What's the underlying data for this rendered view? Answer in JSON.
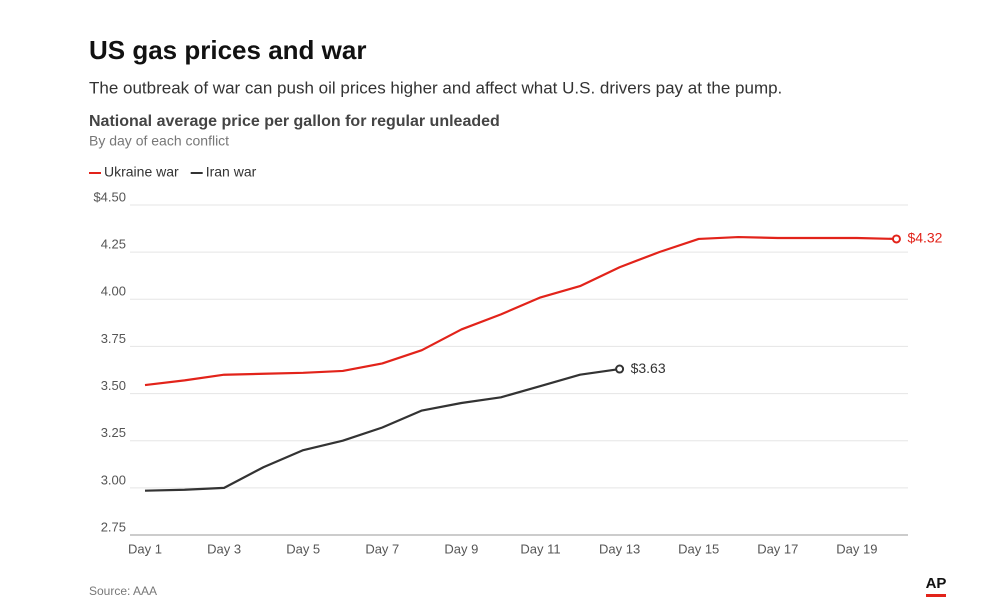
{
  "chart_data": {
    "type": "line",
    "title": "US gas prices and war",
    "subtitle": "The outbreak of war can push oil prices higher and affect what U.S. drivers pay at the pump.",
    "chart_title": "National average price per gallon for regular unleaded",
    "chart_subtitle": "By day of each conflict",
    "source": "Source: AAA",
    "logo": "AP",
    "categories": [
      "Day 1",
      null,
      "Day 3",
      null,
      "Day 5",
      null,
      "Day 7",
      null,
      "Day 9",
      null,
      "Day 11",
      null,
      "Day 13",
      null,
      "Day 15",
      null,
      "Day 17",
      null,
      "Day 19",
      null
    ],
    "series": [
      {
        "name": "Ukraine war",
        "color": "#e2231a",
        "values": [
          3.545,
          3.57,
          3.6,
          3.605,
          3.61,
          3.62,
          3.66,
          3.73,
          3.84,
          3.92,
          4.01,
          4.07,
          4.17,
          4.25,
          4.32,
          4.33,
          4.325,
          4.325,
          4.325,
          4.32
        ],
        "value_labels": [
          null,
          null,
          null,
          null,
          null,
          null,
          null,
          null,
          null,
          null,
          null,
          null,
          null,
          null,
          null,
          null,
          null,
          null,
          null,
          "$4.32"
        ]
      },
      {
        "name": "Iran war",
        "color": "#333333",
        "values": [
          2.985,
          2.99,
          3.0,
          3.11,
          3.2,
          3.25,
          3.32,
          3.41,
          3.45,
          3.48,
          3.54,
          3.6,
          3.63,
          null,
          null,
          null,
          null,
          null,
          null,
          null
        ],
        "value_labels": [
          null,
          null,
          null,
          null,
          null,
          null,
          null,
          null,
          null,
          null,
          null,
          null,
          "$3.63",
          null,
          null,
          null,
          null,
          null,
          null,
          null
        ]
      }
    ],
    "ylim": [
      2.75,
      4.5
    ],
    "yticks": [
      {
        "value": 4.5,
        "label": "$4.50"
      },
      4.25,
      {
        "value": 4,
        "label": "4.00"
      },
      3.75,
      {
        "value": 3.5,
        "label": "3.50"
      },
      3.25,
      {
        "value": 3,
        "label": "3.00"
      },
      2.75
    ],
    "grid": true
  }
}
